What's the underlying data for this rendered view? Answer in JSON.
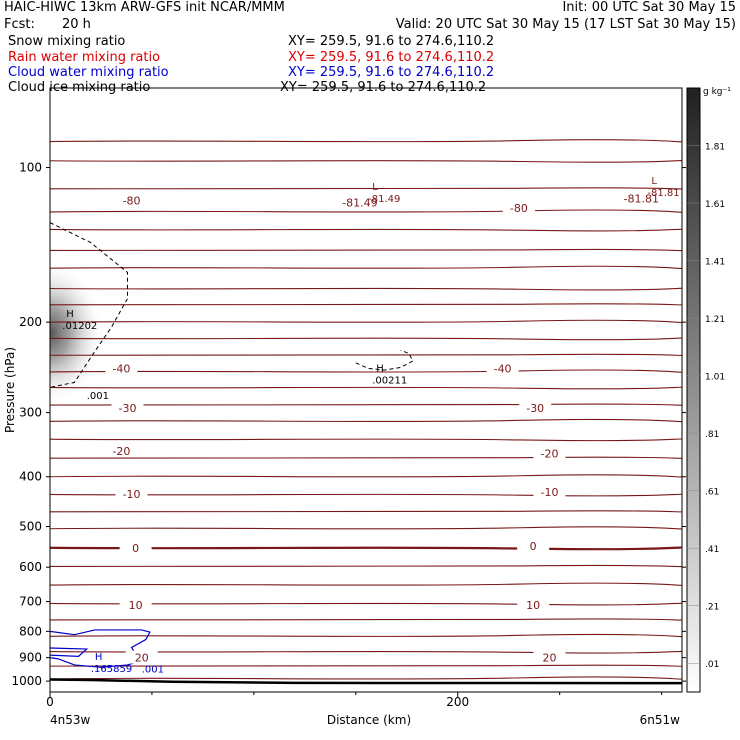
{
  "header": {
    "title": "HAIC-HIWC 13km ARW-GFS init   NCAR/MMM",
    "init": "Init: 00 UTC Sat 30 May 15",
    "fcst_label": "Fcst:",
    "fcst_value": "20 h",
    "valid": "Valid: 20 UTC Sat 30 May 15 (17 LST Sat 30 May 15)",
    "fields": [
      {
        "name": "Snow mixing ratio",
        "xy": "XY= 259.5, 91.6 to 274.6,110.2",
        "color": "#000000"
      },
      {
        "name": "Rain water mixing ratio",
        "xy": "XY= 259.5, 91.6 to 274.6,110.2",
        "color": "#dd0000"
      },
      {
        "name": "Cloud water mixing ratio",
        "xy": "XY= 259.5, 91.6 to 274.6,110.2",
        "color": "#0000cc"
      },
      {
        "name": "Cloud ice mixing ratio",
        "xy": "XY= 259.5, 91.6 to 274.6,110.2",
        "color": "#000000"
      }
    ]
  },
  "chart_data": {
    "type": "cross-section",
    "ylabel": "Pressure (hPa)",
    "xlabel": "Distance (km)",
    "y_log_scale": true,
    "ylim": [
      1050,
      70
    ],
    "xlim": [
      0,
      310
    ],
    "y_ticks": [
      100,
      200,
      300,
      400,
      500,
      600,
      700,
      800,
      900,
      1000
    ],
    "x_ticks": [
      0,
      200
    ],
    "x_start_label": "4n53w",
    "x_end_label": "6n51w",
    "colorbar": {
      "unit": "g kg⁻¹",
      "labels": [
        ".01",
        ".21",
        ".41",
        ".61",
        ".81",
        "1.01",
        "1.21",
        "1.41",
        "1.61",
        "1.81"
      ],
      "range": [
        0.01,
        1.81
      ]
    },
    "temperature_labels": [
      {
        "text": "-80",
        "x": 40,
        "p": 116
      },
      {
        "text": "-80",
        "x": 230,
        "p": 120
      },
      {
        "text": "-81.49",
        "x": 152,
        "p": 117
      },
      {
        "text": "-81.81",
        "x": 290,
        "p": 115
      },
      {
        "text": "-40",
        "x": 35,
        "p": 246
      },
      {
        "text": "-40",
        "x": 222,
        "p": 246
      },
      {
        "text": "-30",
        "x": 38,
        "p": 294
      },
      {
        "text": "-30",
        "x": 238,
        "p": 294
      },
      {
        "text": "-20",
        "x": 35,
        "p": 356
      },
      {
        "text": "-20",
        "x": 245,
        "p": 360
      },
      {
        "text": "-10",
        "x": 40,
        "p": 432
      },
      {
        "text": "-10",
        "x": 245,
        "p": 428
      },
      {
        "text": "0",
        "x": 42,
        "p": 550
      },
      {
        "text": "0",
        "x": 237,
        "p": 546
      },
      {
        "text": "10",
        "x": 42,
        "p": 711
      },
      {
        "text": "10",
        "x": 237,
        "p": 711
      },
      {
        "text": "20",
        "x": 45,
        "p": 900
      },
      {
        "text": "20",
        "x": 245,
        "p": 900
      }
    ],
    "extrema": [
      {
        "kind": "L",
        "value": "-81.49",
        "x": 158,
        "p": 113
      },
      {
        "kind": "L",
        "value": "-81.81",
        "x": 295,
        "p": 110
      },
      {
        "kind": "H",
        "value": ".01202",
        "x": 8,
        "p": 200
      },
      {
        "kind": "H",
        "value": ".00211",
        "x": 160,
        "p": 255
      },
      {
        "kind": "H",
        "value": ".165859",
        "x": 22,
        "p": 930
      }
    ],
    "contour_labels": [
      {
        "text": ".001",
        "x": 18,
        "p": 277,
        "color": "#000000"
      },
      {
        "text": ".001",
        "x": 45,
        "p": 945,
        "color": "#0000cc"
      }
    ],
    "surface_pressure_line": {
      "x": [
        0,
        20,
        60,
        120,
        310
      ],
      "p": [
        993,
        995,
        1003,
        1008,
        1009
      ]
    },
    "isotherm_levels_hpa": [
      89,
      97,
      110,
      122,
      132,
      145,
      157,
      172,
      185,
      200,
      215,
      232,
      250,
      268,
      290,
      312,
      338,
      368,
      400,
      433,
      468,
      505,
      550,
      598,
      650,
      706,
      760,
      818,
      876,
      935,
      990
    ],
    "snow_max_g_per_kg": 0.3
  }
}
